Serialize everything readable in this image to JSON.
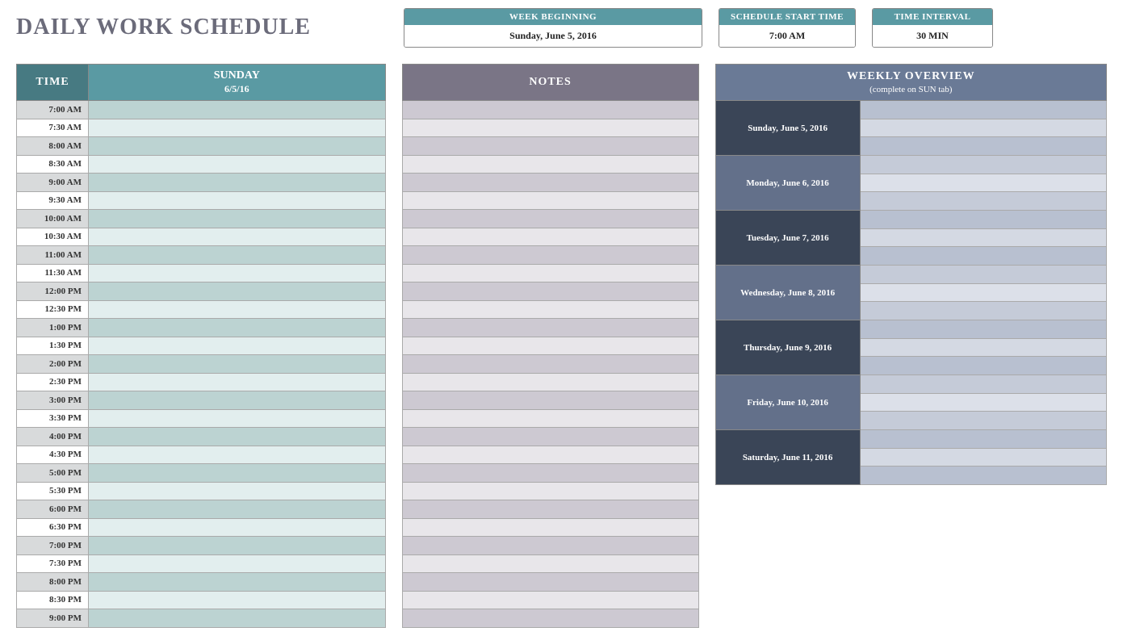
{
  "title": "DAILY WORK SCHEDULE",
  "info": {
    "week_beginning_label": "WEEK BEGINNING",
    "week_beginning_value": "Sunday, June 5, 2016",
    "start_time_label": "SCHEDULE START TIME",
    "start_time_value": "7:00 AM",
    "interval_label": "TIME INTERVAL",
    "interval_value": "30 MIN"
  },
  "schedule": {
    "time_header": "TIME",
    "day_name": "SUNDAY",
    "day_date": "6/5/16",
    "times": [
      "7:00 AM",
      "7:30 AM",
      "8:00 AM",
      "8:30 AM",
      "9:00 AM",
      "9:30 AM",
      "10:00 AM",
      "10:30 AM",
      "11:00 AM",
      "11:30 AM",
      "12:00 PM",
      "12:30 PM",
      "1:00 PM",
      "1:30 PM",
      "2:00 PM",
      "2:30 PM",
      "3:00 PM",
      "3:30 PM",
      "4:00 PM",
      "4:30 PM",
      "5:00 PM",
      "5:30 PM",
      "6:00 PM",
      "6:30 PM",
      "7:00 PM",
      "7:30 PM",
      "8:00 PM",
      "8:30 PM",
      "9:00 PM"
    ],
    "colors": {
      "time_header_bg": "#477a82",
      "day_header_bg": "#5a9aa3",
      "time_cell_odd": "#d8dadb",
      "time_cell_even": "#ffffff",
      "slot_odd": "#bcd3d2",
      "slot_even": "#e2eeee"
    }
  },
  "notes": {
    "header": "NOTES",
    "row_count": 29,
    "colors": {
      "header_bg": "#7a7586",
      "row_odd": "#cdc9d2",
      "row_even": "#e8e6ea"
    }
  },
  "overview": {
    "header_main": "WEEKLY OVERVIEW",
    "header_sub": "(complete on SUN tab)",
    "days": [
      {
        "label": "Sunday, June 5, 2016",
        "label_bg": "#3a4557",
        "slot_odd": "#b8c0d0",
        "slot_even": "#d4d9e3"
      },
      {
        "label": "Monday, June 6, 2016",
        "label_bg": "#63708a",
        "slot_odd": "#c5cbd8",
        "slot_even": "#dce0e9"
      },
      {
        "label": "Tuesday, June 7, 2016",
        "label_bg": "#3a4557",
        "slot_odd": "#b8c0d0",
        "slot_even": "#d4d9e3"
      },
      {
        "label": "Wednesday, June 8, 2016",
        "label_bg": "#63708a",
        "slot_odd": "#c5cbd8",
        "slot_even": "#dce0e9"
      },
      {
        "label": "Thursday, June 9, 2016",
        "label_bg": "#3a4557",
        "slot_odd": "#b8c0d0",
        "slot_even": "#d4d9e3"
      },
      {
        "label": "Friday, June 10, 2016",
        "label_bg": "#63708a",
        "slot_odd": "#c5cbd8",
        "slot_even": "#dce0e9"
      },
      {
        "label": "Saturday, June 11, 2016",
        "label_bg": "#3a4557",
        "slot_odd": "#b8c0d0",
        "slot_even": "#d4d9e3"
      }
    ],
    "colors": {
      "header_bg": "#6a7a96"
    }
  }
}
